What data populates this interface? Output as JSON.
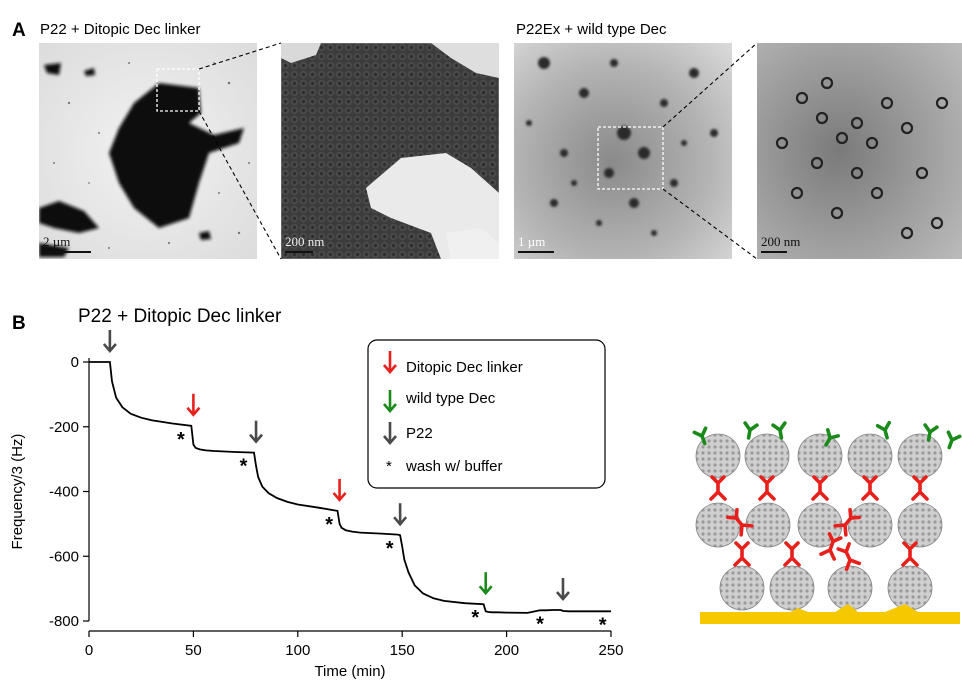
{
  "panel_a": {
    "letter": "A",
    "left_caption": "P22 + Ditopic Dec linker",
    "right_caption": "P22Ex + wild type Dec",
    "scale_bars": [
      "2 µm",
      "200 nm",
      "1 µm",
      "200 nm"
    ]
  },
  "panel_b": {
    "letter": "B",
    "title": "P22 + Ditopic Dec linker",
    "legend": {
      "red": "Ditopic Dec linker",
      "green": "wild type Dec",
      "gray": "P22",
      "star": "wash w/ buffer"
    },
    "colors": {
      "red": "#e8201c",
      "green": "#1a8a1a",
      "gray": "#4a4a4a",
      "gold": "#f5c800"
    }
  },
  "chart_data": {
    "type": "line",
    "xlabel": "Time (min)",
    "ylabel": "Frequency/3 (Hz)",
    "xlim": [
      0,
      250
    ],
    "ylim": [
      -800,
      0
    ],
    "xticks": [
      0,
      50,
      100,
      150,
      200,
      250
    ],
    "yticks": [
      0,
      -200,
      -400,
      -600,
      -800
    ],
    "x": [
      0,
      10,
      11,
      13,
      16,
      20,
      25,
      30,
      40,
      49,
      50,
      51,
      53,
      56,
      60,
      70,
      79,
      80,
      81,
      83,
      86,
      90,
      95,
      100,
      110,
      119,
      120,
      121,
      123,
      126,
      130,
      140,
      148,
      149,
      150,
      151,
      153,
      156,
      160,
      165,
      170,
      180,
      189,
      190,
      191,
      193,
      196,
      200,
      210,
      216,
      219,
      222,
      226,
      227,
      230,
      240,
      250
    ],
    "y": [
      0,
      0,
      -60,
      -110,
      -140,
      -160,
      -172,
      -180,
      -190,
      -197,
      -255,
      -265,
      -270,
      -273,
      -275,
      -278,
      -280,
      -320,
      -355,
      -385,
      -405,
      -420,
      -432,
      -440,
      -450,
      -460,
      -500,
      -512,
      -520,
      -524,
      -527,
      -530,
      -533,
      -535,
      -570,
      -610,
      -650,
      -690,
      -715,
      -730,
      -738,
      -745,
      -748,
      -770,
      -772,
      -773,
      -773,
      -774,
      -775,
      -767,
      -767,
      -766,
      -766,
      -769,
      -770,
      -770,
      -770
    ],
    "markers": [
      {
        "kind": "gray",
        "x": 10,
        "y": 0
      },
      {
        "kind": "red",
        "x": 50,
        "y": -197
      },
      {
        "kind": "gray",
        "x": 80,
        "y": -280
      },
      {
        "kind": "red",
        "x": 120,
        "y": -460
      },
      {
        "kind": "gray",
        "x": 149,
        "y": -535
      },
      {
        "kind": "green",
        "x": 190,
        "y": -748
      },
      {
        "kind": "gray",
        "x": 227,
        "y": -766
      }
    ],
    "wash": [
      {
        "x": 44,
        "y": -197
      },
      {
        "x": 74,
        "y": -280
      },
      {
        "x": 115,
        "y": -460
      },
      {
        "x": 144,
        "y": -535
      },
      {
        "x": 185,
        "y": -748
      },
      {
        "x": 216,
        "y": -767
      },
      {
        "x": 246,
        "y": -770
      }
    ]
  }
}
